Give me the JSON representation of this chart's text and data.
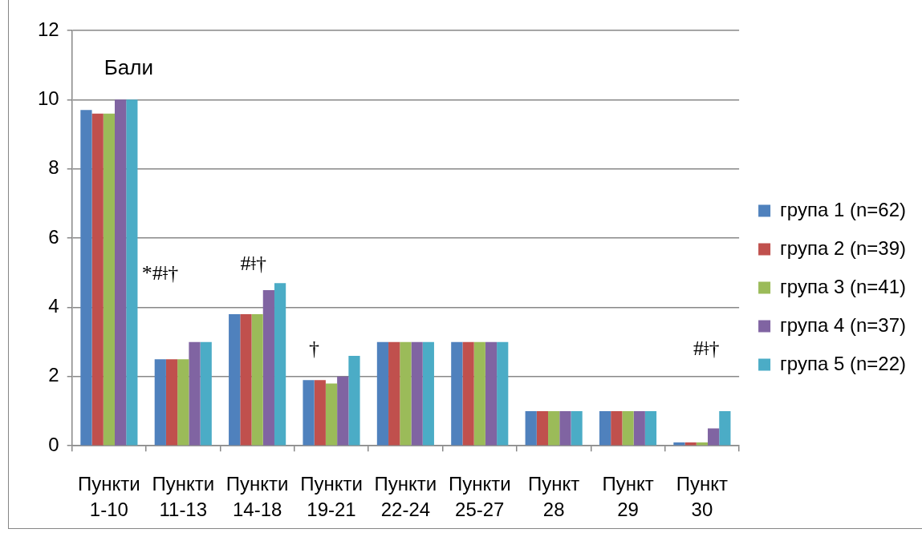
{
  "chart_data": {
    "type": "bar",
    "ylabel": "Бали",
    "categories": [
      "Пункти 1-10",
      "Пункти 11-13",
      "Пункти 14-18",
      "Пункти 19-21",
      "Пункти 22-24",
      "Пункти 25-27",
      "Пункт 28",
      "Пункт 29",
      "Пункт 30"
    ],
    "series": [
      {
        "name": "група 1 (n=62)",
        "color": "#4f81bd",
        "values": [
          9.7,
          2.5,
          3.8,
          1.9,
          3,
          3,
          1,
          1,
          0.1
        ]
      },
      {
        "name": "група 2 (n=39)",
        "color": "#c0504d",
        "values": [
          9.6,
          2.5,
          3.8,
          1.9,
          3,
          3,
          1,
          1,
          0.1
        ]
      },
      {
        "name": "група 3 (n=41)",
        "color": "#9bbb59",
        "values": [
          9.6,
          2.5,
          3.8,
          1.8,
          3,
          3,
          1,
          1,
          0.1
        ]
      },
      {
        "name": "група 4 (n=37)",
        "color": "#8064a2",
        "values": [
          10,
          3,
          4.5,
          2,
          3,
          3,
          1,
          1,
          0.5
        ]
      },
      {
        "name": "група 5 (n=22)",
        "color": "#4bacc6",
        "values": [
          10,
          3,
          4.7,
          2.6,
          3,
          3,
          1,
          1,
          1
        ]
      }
    ],
    "ylim": [
      0,
      12
    ],
    "yticks": [
      0,
      2,
      4,
      6,
      8,
      10,
      12
    ],
    "grid": "y",
    "legend": "right",
    "annotations": [
      "*#ǂ†",
      "#ǂ†",
      "†",
      "#ǂ†"
    ]
  }
}
